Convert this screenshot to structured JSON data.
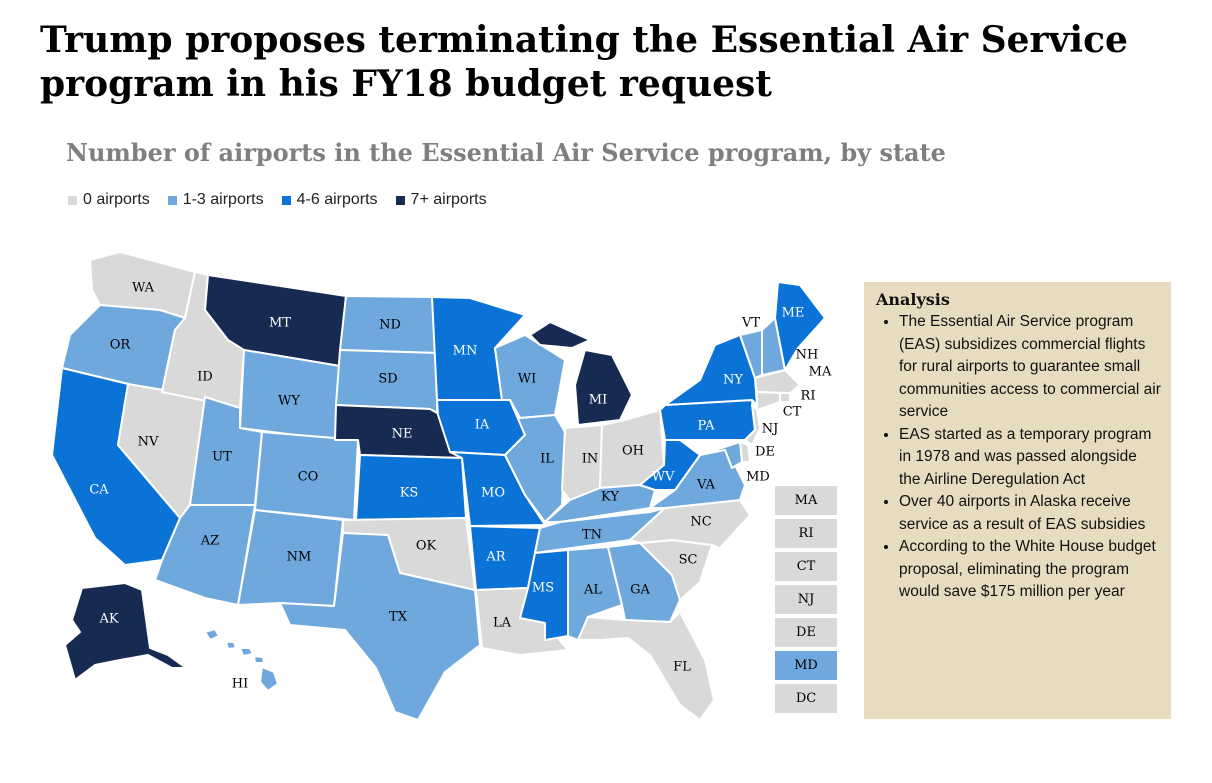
{
  "title": "Trump proposes terminating the Essential Air Service program in his FY18 budget request",
  "subtitle": "Number of airports in the Essential Air Service program, by state",
  "colors": {
    "c0": "#d9d9d9",
    "c1": "#6fa8dc",
    "c2": "#0b73d6",
    "c3": "#172a52"
  },
  "legend": [
    {
      "label": "0 airports",
      "cat": "c0"
    },
    {
      "label": "1-3 airports",
      "cat": "c1"
    },
    {
      "label": "4-6 airports",
      "cat": "c2"
    },
    {
      "label": "7+ airports",
      "cat": "c3"
    }
  ],
  "states": {
    "WA": {
      "label": "WA",
      "cat": "c0"
    },
    "OR": {
      "label": "OR",
      "cat": "c1"
    },
    "CA": {
      "label": "CA",
      "cat": "c2"
    },
    "NV": {
      "label": "NV",
      "cat": "c0"
    },
    "ID": {
      "label": "ID",
      "cat": "c0"
    },
    "MT": {
      "label": "MT",
      "cat": "c3"
    },
    "WY": {
      "label": "WY",
      "cat": "c1"
    },
    "UT": {
      "label": "UT",
      "cat": "c1"
    },
    "AZ": {
      "label": "AZ",
      "cat": "c1"
    },
    "CO": {
      "label": "CO",
      "cat": "c1"
    },
    "NM": {
      "label": "NM",
      "cat": "c1"
    },
    "ND": {
      "label": "ND",
      "cat": "c1"
    },
    "SD": {
      "label": "SD",
      "cat": "c1"
    },
    "NE": {
      "label": "NE",
      "cat": "c3"
    },
    "KS": {
      "label": "KS",
      "cat": "c2"
    },
    "OK": {
      "label": "OK",
      "cat": "c0"
    },
    "TX": {
      "label": "TX",
      "cat": "c1"
    },
    "MN": {
      "label": "MN",
      "cat": "c2"
    },
    "IA": {
      "label": "IA",
      "cat": "c2"
    },
    "MO": {
      "label": "MO",
      "cat": "c2"
    },
    "AR": {
      "label": "AR",
      "cat": "c2"
    },
    "LA": {
      "label": "LA",
      "cat": "c0"
    },
    "WI": {
      "label": "WI",
      "cat": "c1"
    },
    "IL": {
      "label": "IL",
      "cat": "c1"
    },
    "MI": {
      "label": "MI",
      "cat": "c3"
    },
    "IN": {
      "label": "IN",
      "cat": "c0"
    },
    "OH": {
      "label": "OH",
      "cat": "c0"
    },
    "KY": {
      "label": "KY",
      "cat": "c1"
    },
    "TN": {
      "label": "TN",
      "cat": "c1"
    },
    "MS": {
      "label": "MS",
      "cat": "c2"
    },
    "AL": {
      "label": "AL",
      "cat": "c1"
    },
    "GA": {
      "label": "GA",
      "cat": "c1"
    },
    "FL": {
      "label": "FL",
      "cat": "c0"
    },
    "SC": {
      "label": "SC",
      "cat": "c0"
    },
    "NC": {
      "label": "NC",
      "cat": "c0"
    },
    "VA": {
      "label": "VA",
      "cat": "c1"
    },
    "WV": {
      "label": "WV",
      "cat": "c2"
    },
    "PA": {
      "label": "PA",
      "cat": "c2"
    },
    "NY": {
      "label": "NY",
      "cat": "c2"
    },
    "VT": {
      "label": "VT",
      "cat": "c1"
    },
    "NH": {
      "label": "NH",
      "cat": "c1"
    },
    "ME": {
      "label": "ME",
      "cat": "c2"
    },
    "MA": {
      "label": "MA",
      "cat": "c0"
    },
    "RI": {
      "label": "RI",
      "cat": "c0"
    },
    "CT": {
      "label": "CT",
      "cat": "c0"
    },
    "NJ": {
      "label": "NJ",
      "cat": "c0"
    },
    "DE": {
      "label": "DE",
      "cat": "c0"
    },
    "MD": {
      "label": "MD",
      "cat": "c1"
    },
    "AK": {
      "label": "AK",
      "cat": "c3"
    },
    "HI": {
      "label": "HI",
      "cat": "c1"
    }
  },
  "small_states": [
    {
      "label": "MA",
      "cat": "c0"
    },
    {
      "label": "RI",
      "cat": "c0"
    },
    {
      "label": "CT",
      "cat": "c0"
    },
    {
      "label": "NJ",
      "cat": "c0"
    },
    {
      "label": "DE",
      "cat": "c0"
    },
    {
      "label": "MD",
      "cat": "c1"
    },
    {
      "label": "DC",
      "cat": "c0"
    }
  ],
  "analysis": {
    "heading": "Analysis",
    "bullets": [
      "The Essential Air Service program (EAS) subsidizes commercial flights for rural airports to guarantee small communities access to commercial air service",
      "EAS started as a temporary program in 1978 and was passed alongside the Airline Deregulation Act",
      "Over 40 airports in Alaska receive service as a result of EAS subsidies",
      "According to the White House budget proposal, eliminating the program would save $175 million per year"
    ]
  }
}
